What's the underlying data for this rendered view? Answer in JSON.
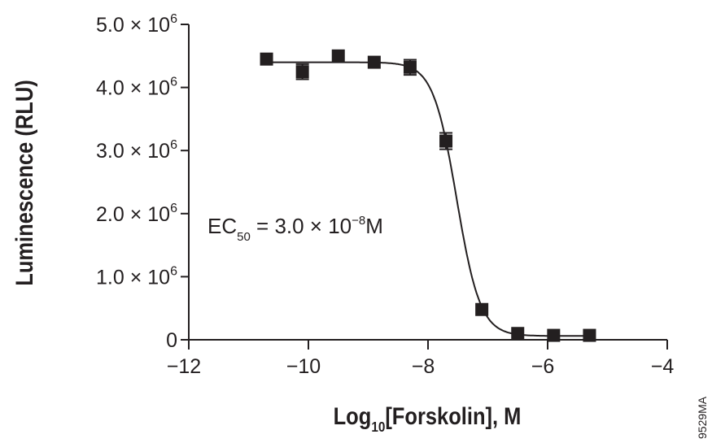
{
  "chart_data": {
    "type": "scatter",
    "title": "",
    "xlabel": "Log10[Forskolin], M",
    "xlabel_main": "Log",
    "xlabel_sub": "10",
    "xlabel_rest": "[Forskolin], M",
    "ylabel": "Luminescence (RLU)",
    "xlim": [
      -12,
      -4
    ],
    "ylim": [
      0,
      5000000
    ],
    "xticks": [
      -12,
      -10,
      -8,
      -6,
      -4
    ],
    "xtick_labels": [
      "−12",
      "−10",
      "−8",
      "−6",
      "−4"
    ],
    "yticks": [
      0,
      1000000,
      2000000,
      3000000,
      4000000,
      5000000
    ],
    "ytick_labels": [
      "0",
      "1.0 × 10",
      "2.0 × 10",
      "3.0 × 10",
      "4.0 × 10",
      "5.0 × 10"
    ],
    "ytick_exponent": "6",
    "grid": false,
    "series": [
      {
        "x": [
          -10.7,
          -10.1,
          -9.5,
          -8.9,
          -8.3,
          -7.7,
          -7.1,
          -6.5,
          -5.9,
          -5.3
        ],
        "y": [
          4450000,
          4250000,
          4500000,
          4400000,
          4320000,
          3150000,
          480000,
          100000,
          70000,
          70000
        ],
        "error": [
          0,
          120000,
          0,
          0,
          120000,
          130000,
          0,
          0,
          0,
          0
        ],
        "marker": "square",
        "color": "#231f20"
      }
    ],
    "fit": {
      "type": "sigmoidal dose-response",
      "top": 4400000,
      "bottom": 60000,
      "log_ec50": -7.52,
      "hill_slope": 2.2
    },
    "annotation": {
      "ec_prefix": "EC",
      "ec_sub": "50",
      "ec_value": " = 3.0 × 10",
      "ec_exp": "−8",
      "ec_unit": "M"
    }
  },
  "figure_code": "9529MA"
}
